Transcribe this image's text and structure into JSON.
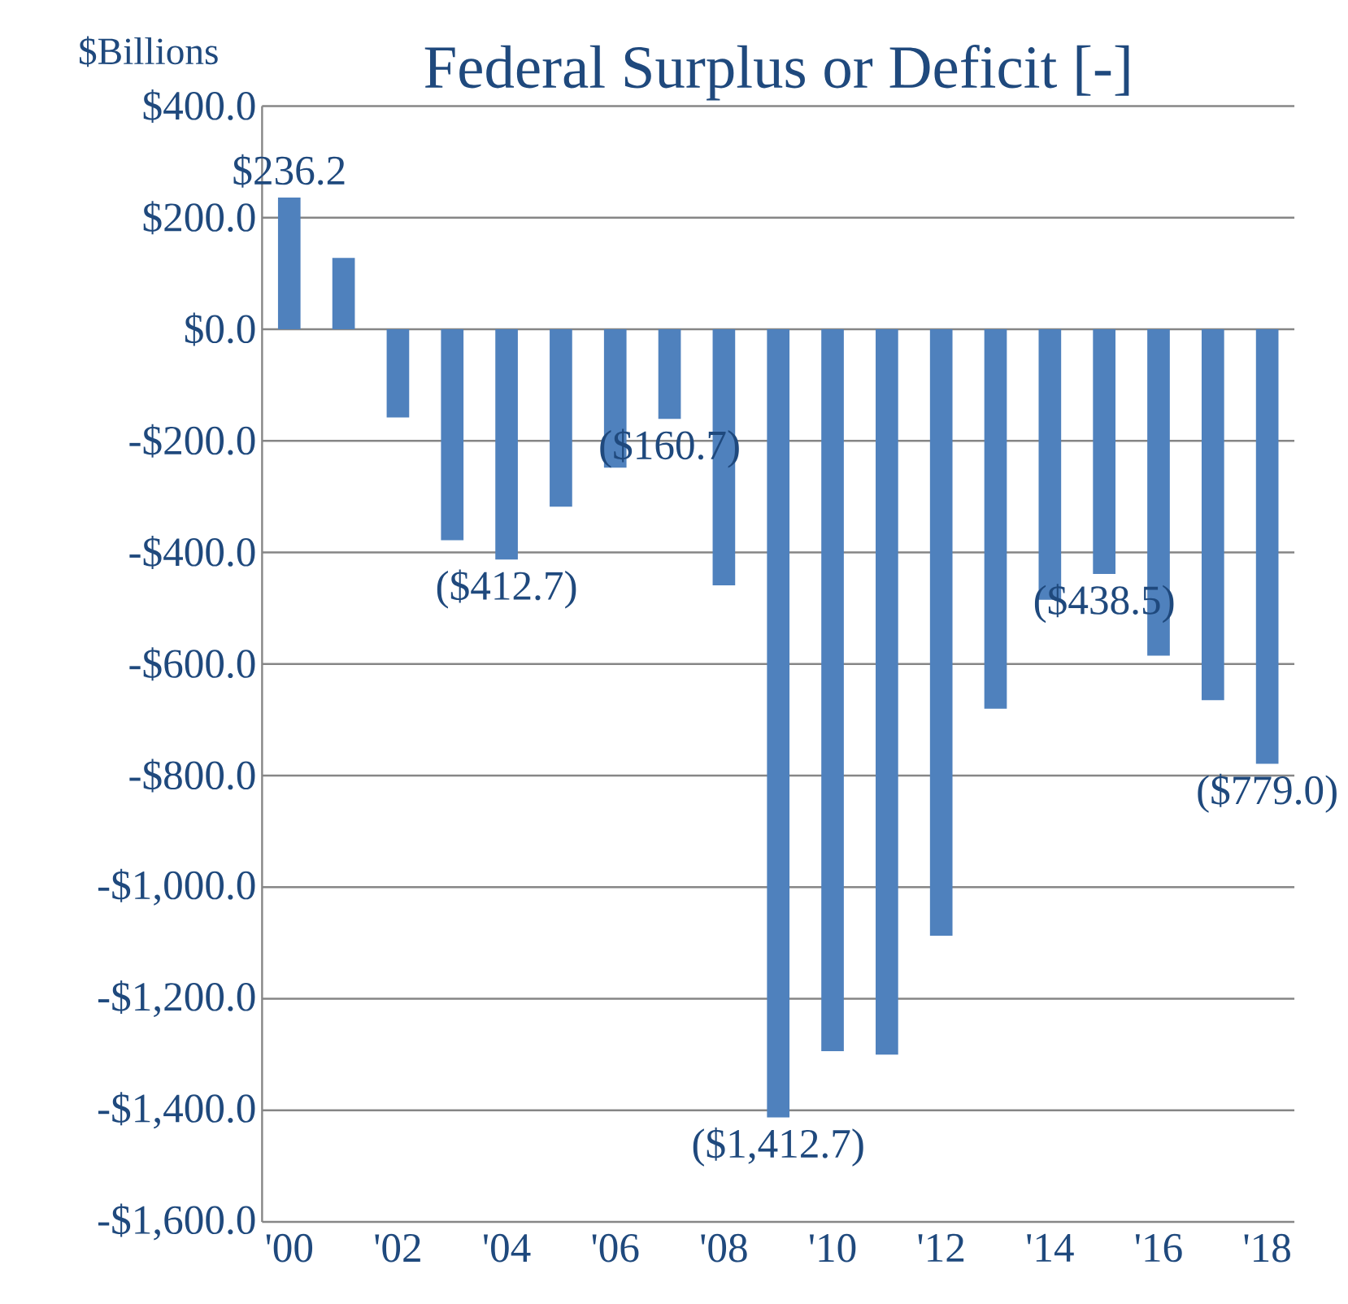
{
  "chart_data": {
    "type": "bar",
    "title": "Federal Surplus or Deficit [-]",
    "ylabel": "$Billions",
    "categories": [
      "'00",
      null,
      "'02",
      null,
      "'04",
      null,
      "'06",
      null,
      "'08",
      null,
      "'10",
      null,
      "'12",
      null,
      "'14",
      null,
      "'16",
      null,
      "'18"
    ],
    "values": [
      236.2,
      128,
      -158,
      -378,
      -412.7,
      -318,
      -248,
      -160.7,
      -459,
      -1412.7,
      -1294,
      -1300,
      -1087,
      -680,
      -485,
      -438.5,
      -585,
      -665,
      -779.0
    ],
    "value_labels": [
      "$236.2",
      null,
      null,
      null,
      "($412.7)",
      null,
      null,
      "($160.7)",
      null,
      "($1,412.7)",
      null,
      null,
      null,
      null,
      null,
      "($438.5)",
      null,
      null,
      "($779.0)"
    ],
    "color": "#4f81bd",
    "ylim": [
      -1600,
      400
    ],
    "yticks": [
      {
        "value": 400,
        "label": "$400.0"
      },
      {
        "value": 200,
        "label": "$200.0"
      },
      {
        "value": 0,
        "label": "$0.0"
      },
      {
        "value": -200,
        "label": "-$200.0"
      },
      {
        "value": -400,
        "label": "-$400.0"
      },
      {
        "value": -600,
        "label": "-$600.0"
      },
      {
        "value": -800,
        "label": "-$800.0"
      },
      {
        "value": -1000,
        "label": "-$1,000.0"
      },
      {
        "value": -1200,
        "label": "-$1,200.0"
      },
      {
        "value": -1400,
        "label": "-$1,400.0"
      },
      {
        "value": -1600,
        "label": "-$1,600.0"
      }
    ],
    "grid": "y"
  }
}
